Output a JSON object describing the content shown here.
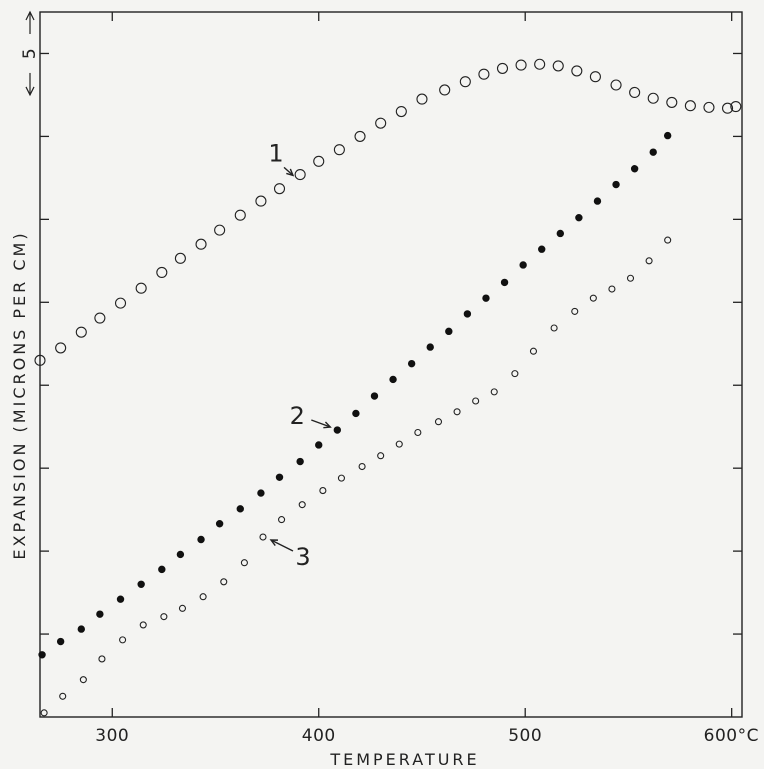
{
  "chart_data": {
    "type": "scatter",
    "title": "",
    "xlabel": "TEMPERATURE",
    "ylabel": "EXPANSION (MICRONS PER CM)",
    "xlim": [
      265,
      605
    ],
    "ylim": [
      0,
      85
    ],
    "x_ticks": [
      300,
      400,
      500,
      600
    ],
    "x_tick_labels": [
      "300",
      "400",
      "500",
      "600°C"
    ],
    "y_ticks": [
      10,
      20,
      30,
      40,
      50,
      60,
      70,
      80
    ],
    "scale_bar": {
      "label": "5",
      "from": 75,
      "to": 85
    },
    "grid": false,
    "series": [
      {
        "name": "",
        "callout": "1",
        "callout_at": 389,
        "marker": "open-large",
        "x": [
          265,
          275,
          285,
          294,
          304,
          314,
          324,
          333,
          343,
          352,
          362,
          372,
          381,
          391,
          400,
          410,
          420,
          430,
          440,
          450,
          461,
          471,
          480,
          489,
          498,
          507,
          516,
          525,
          534,
          544,
          553,
          562,
          571,
          580,
          589,
          598,
          602
        ],
        "y": [
          43.0,
          44.5,
          46.4,
          48.1,
          49.9,
          51.7,
          53.6,
          55.3,
          57.0,
          58.7,
          60.5,
          62.2,
          63.7,
          65.4,
          67.0,
          68.4,
          70.0,
          71.6,
          73.0,
          74.5,
          75.6,
          76.6,
          77.5,
          78.2,
          78.6,
          78.7,
          78.5,
          77.9,
          77.2,
          76.2,
          75.3,
          74.6,
          74.1,
          73.7,
          73.5,
          73.4,
          73.6
        ]
      },
      {
        "name": "",
        "callout": "2",
        "callout_at": 409,
        "marker": "filled",
        "x": [
          266,
          275,
          285,
          294,
          304,
          314,
          324,
          333,
          343,
          352,
          362,
          372,
          381,
          391,
          400,
          409,
          418,
          427,
          436,
          445,
          454,
          463,
          472,
          481,
          490,
          499,
          508,
          517,
          526,
          535,
          544,
          553,
          562,
          569
        ],
        "y": [
          7.5,
          9.1,
          10.6,
          12.4,
          14.2,
          16.0,
          17.8,
          19.6,
          21.4,
          23.3,
          25.1,
          27.0,
          28.9,
          30.8,
          32.8,
          34.6,
          36.6,
          38.7,
          40.7,
          42.6,
          44.6,
          46.5,
          48.6,
          50.5,
          52.4,
          54.5,
          56.4,
          58.3,
          60.2,
          62.2,
          64.2,
          66.1,
          68.1,
          70.1
        ]
      },
      {
        "name": "",
        "callout": "3",
        "callout_at": 373,
        "marker": "open-small",
        "x": [
          267,
          276,
          286,
          295,
          305,
          315,
          325,
          334,
          344,
          354,
          364,
          373,
          382,
          392,
          402,
          411,
          421,
          430,
          439,
          448,
          458,
          467,
          476,
          485,
          495,
          504,
          514,
          524,
          533,
          542,
          551,
          560,
          569
        ],
        "y": [
          0.5,
          2.5,
          4.5,
          7.0,
          9.3,
          11.1,
          12.1,
          13.1,
          14.5,
          16.3,
          18.6,
          21.7,
          23.8,
          25.6,
          27.3,
          28.8,
          30.2,
          31.5,
          32.9,
          34.3,
          35.6,
          36.8,
          38.1,
          39.2,
          41.4,
          44.1,
          46.9,
          48.9,
          50.5,
          51.6,
          52.9,
          55.0,
          57.5
        ]
      }
    ]
  }
}
